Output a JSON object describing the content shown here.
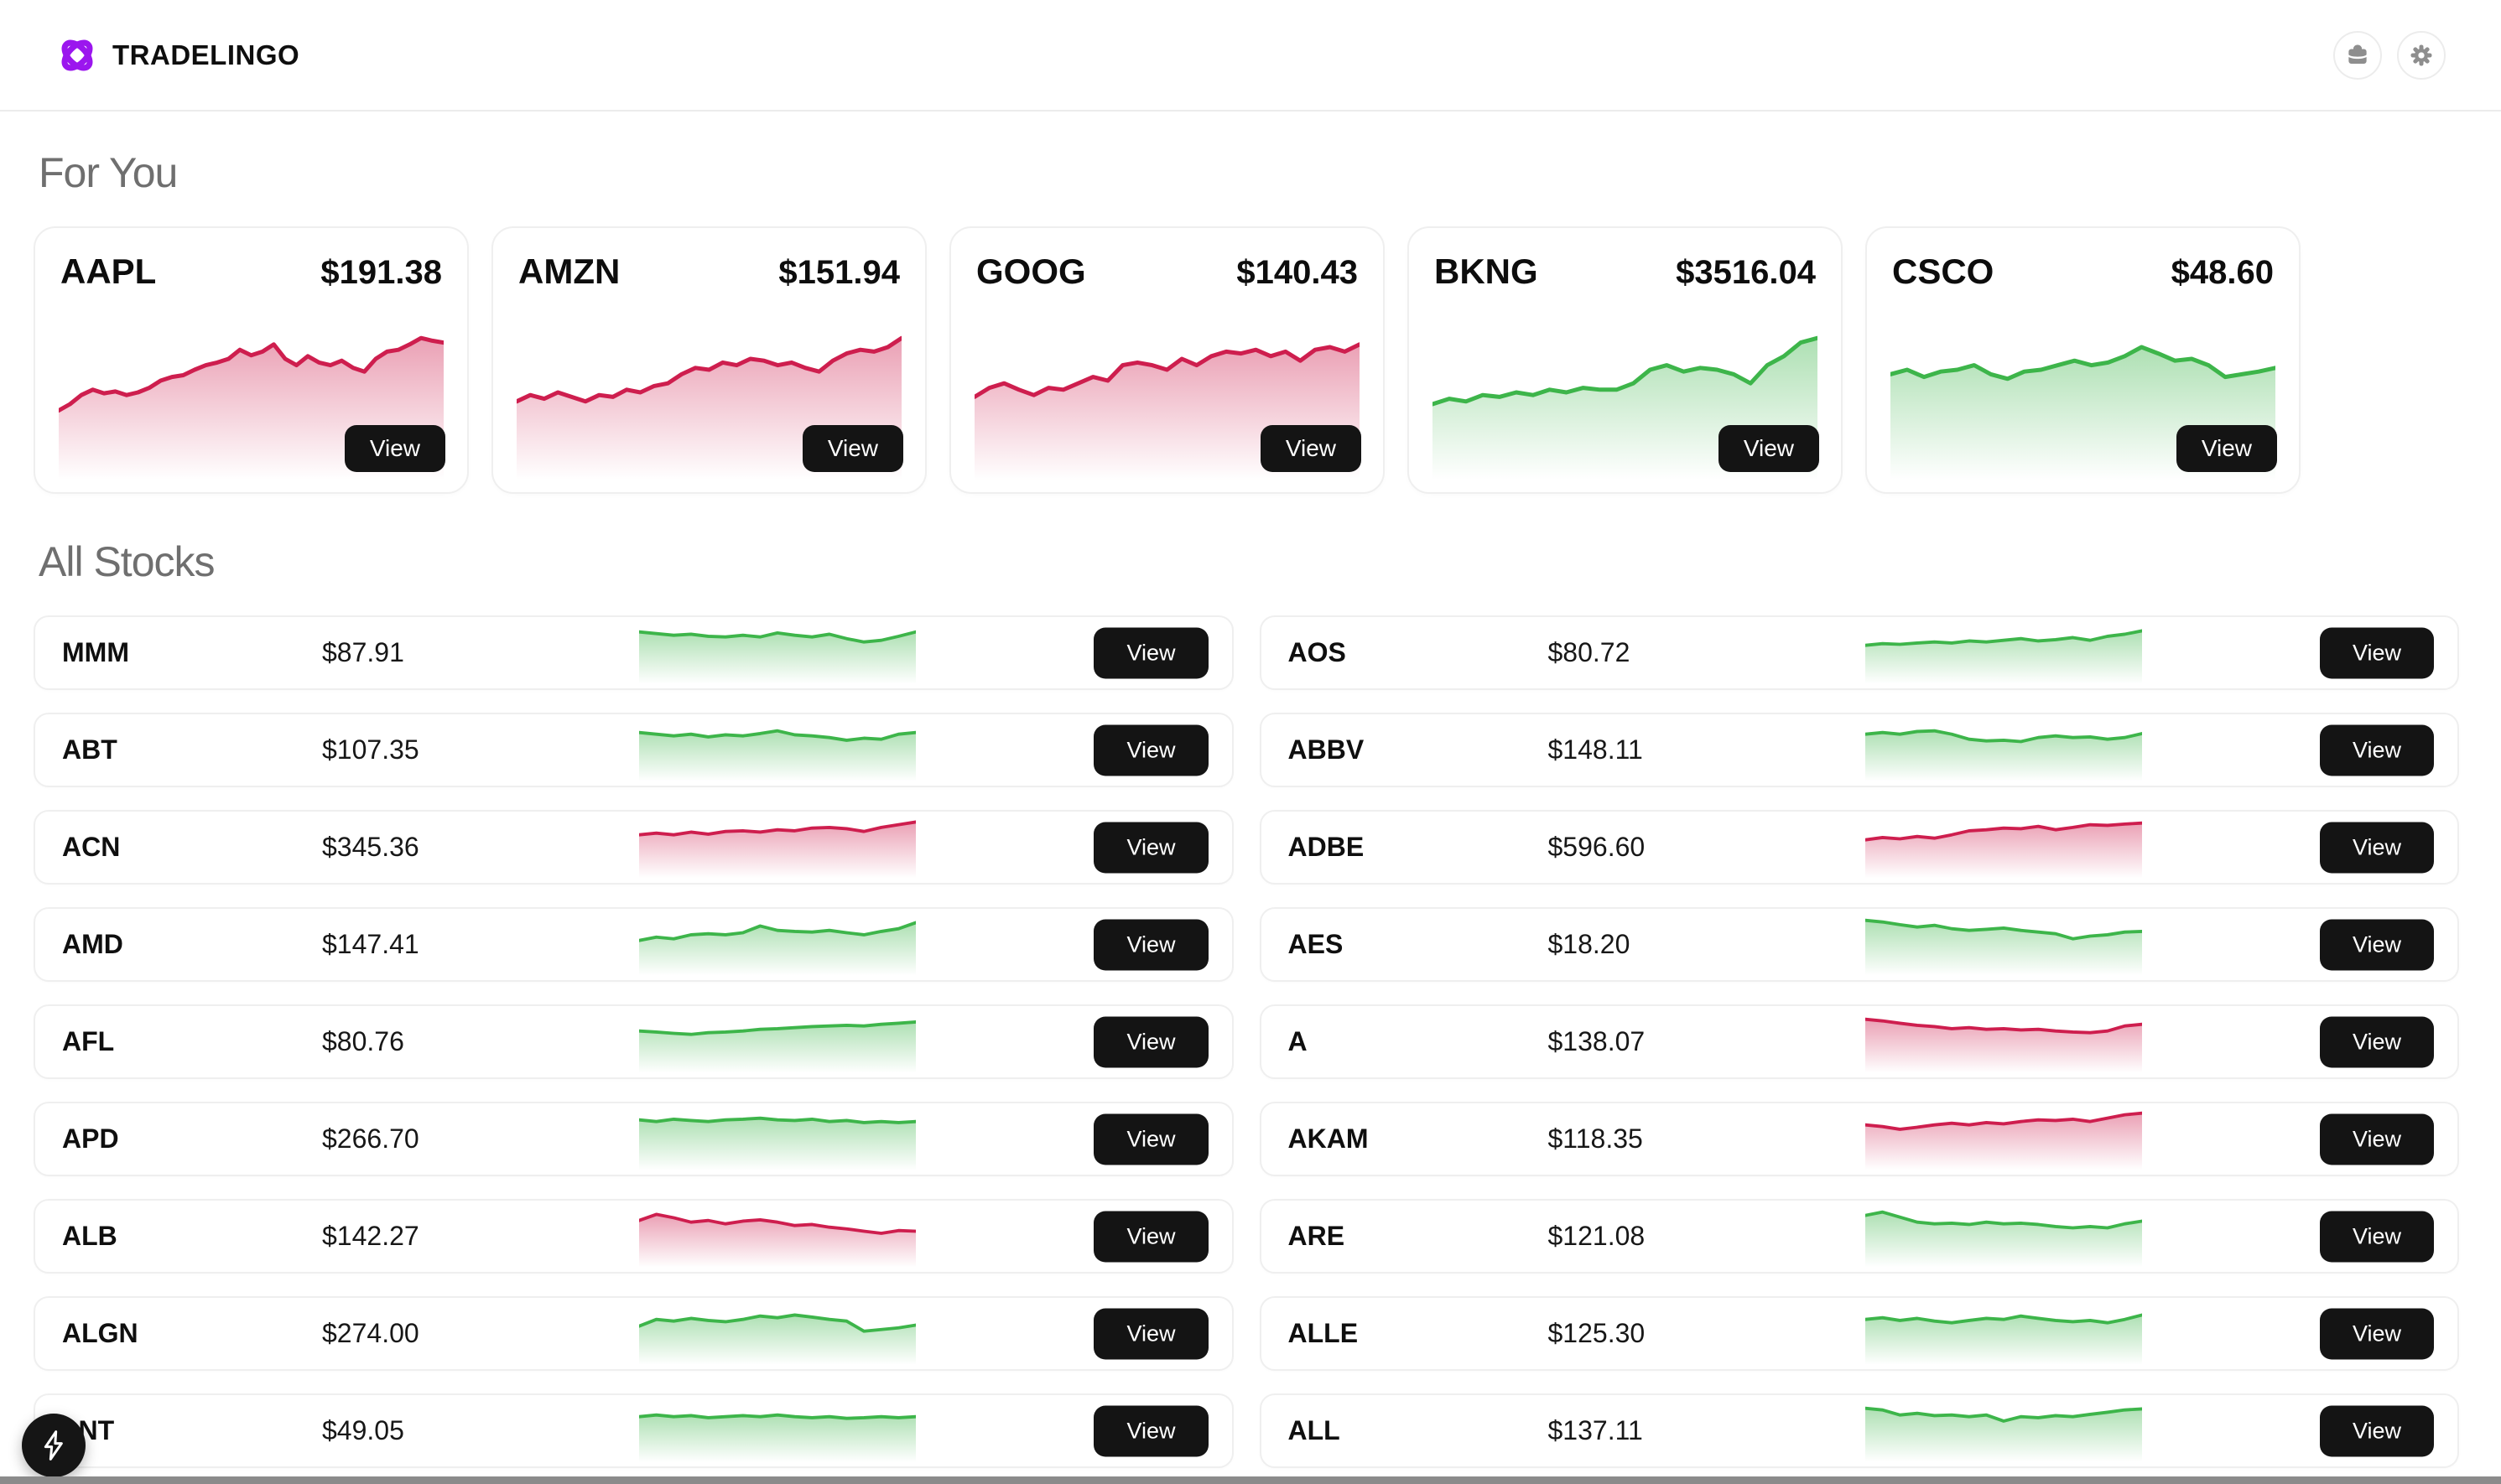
{
  "brand": {
    "name": "TRADELINGO"
  },
  "labels": {
    "view": "View"
  },
  "sections": {
    "for_you": "For You",
    "all_stocks": "All Stocks"
  },
  "colors": {
    "up_line": "#3db54a",
    "down_line": "#ce1e4e",
    "brand_purple": "#9b16ee",
    "button_bg": "#141414",
    "heading_gray": "#6f6f6f",
    "icon_gray": "#8e8e8e",
    "bottom_bar": "#8b8b8b"
  },
  "header_icons": [
    {
      "name": "portfolio",
      "icon": "briefcase-icon"
    },
    {
      "name": "settings",
      "icon": "gear-icon"
    }
  ],
  "featured": [
    {
      "ticker": "AAPL",
      "price": "$191.38",
      "trend": "down",
      "points": [
        0.05,
        0.12,
        0.22,
        0.28,
        0.24,
        0.26,
        0.22,
        0.25,
        0.3,
        0.38,
        0.42,
        0.44,
        0.5,
        0.55,
        0.58,
        0.62,
        0.72,
        0.66,
        0.7,
        0.78,
        0.62,
        0.55,
        0.65,
        0.58,
        0.55,
        0.6,
        0.52,
        0.48,
        0.62,
        0.7,
        0.72,
        0.78,
        0.85,
        0.82,
        0.8
      ]
    },
    {
      "ticker": "AMZN",
      "price": "$151.94",
      "trend": "down",
      "points": [
        0.15,
        0.22,
        0.18,
        0.25,
        0.2,
        0.15,
        0.22,
        0.2,
        0.28,
        0.25,
        0.32,
        0.35,
        0.45,
        0.52,
        0.5,
        0.58,
        0.55,
        0.62,
        0.6,
        0.55,
        0.58,
        0.52,
        0.48,
        0.6,
        0.68,
        0.72,
        0.7,
        0.75,
        0.85
      ]
    },
    {
      "ticker": "GOOG",
      "price": "$140.43",
      "trend": "down",
      "points": [
        0.2,
        0.3,
        0.35,
        0.28,
        0.22,
        0.3,
        0.28,
        0.35,
        0.42,
        0.38,
        0.55,
        0.58,
        0.55,
        0.5,
        0.62,
        0.55,
        0.65,
        0.7,
        0.68,
        0.72,
        0.65,
        0.7,
        0.6,
        0.72,
        0.75,
        0.7,
        0.78
      ]
    },
    {
      "ticker": "BKNG",
      "price": "$3516.04",
      "trend": "up",
      "points": [
        0.12,
        0.18,
        0.15,
        0.22,
        0.2,
        0.25,
        0.22,
        0.28,
        0.25,
        0.3,
        0.28,
        0.28,
        0.35,
        0.5,
        0.55,
        0.48,
        0.52,
        0.5,
        0.45,
        0.35,
        0.55,
        0.65,
        0.8,
        0.85
      ]
    },
    {
      "ticker": "CSCO",
      "price": "$48.60",
      "trend": "up",
      "points": [
        0.45,
        0.5,
        0.42,
        0.48,
        0.5,
        0.55,
        0.45,
        0.4,
        0.48,
        0.5,
        0.55,
        0.6,
        0.55,
        0.58,
        0.65,
        0.75,
        0.68,
        0.6,
        0.62,
        0.55,
        0.42,
        0.45,
        0.48,
        0.52
      ]
    }
  ],
  "stocks": [
    {
      "ticker": "MMM",
      "price": "$87.91",
      "trend": "up",
      "points": [
        0.75,
        0.7,
        0.65,
        0.68,
        0.62,
        0.6,
        0.65,
        0.6,
        0.72,
        0.65,
        0.6,
        0.68,
        0.55,
        0.45,
        0.5,
        0.62,
        0.75
      ]
    },
    {
      "ticker": "AOS",
      "price": "$80.72",
      "trend": "up",
      "points": [
        0.35,
        0.4,
        0.38,
        0.42,
        0.45,
        0.42,
        0.48,
        0.45,
        0.5,
        0.55,
        0.48,
        0.52,
        0.58,
        0.5,
        0.62,
        0.68,
        0.78
      ]
    },
    {
      "ticker": "ABT",
      "price": "$107.35",
      "trend": "up",
      "points": [
        0.65,
        0.6,
        0.55,
        0.6,
        0.52,
        0.58,
        0.55,
        0.62,
        0.7,
        0.58,
        0.55,
        0.5,
        0.42,
        0.48,
        0.45,
        0.6,
        0.65
      ]
    },
    {
      "ticker": "ABBV",
      "price": "$148.11",
      "trend": "up",
      "points": [
        0.6,
        0.65,
        0.6,
        0.68,
        0.7,
        0.6,
        0.45,
        0.4,
        0.42,
        0.38,
        0.5,
        0.55,
        0.5,
        0.52,
        0.45,
        0.5,
        0.62
      ]
    },
    {
      "ticker": "ACN",
      "price": "$345.36",
      "trend": "down",
      "points": [
        0.5,
        0.55,
        0.5,
        0.58,
        0.52,
        0.6,
        0.62,
        0.58,
        0.65,
        0.62,
        0.7,
        0.72,
        0.68,
        0.6,
        0.72,
        0.8,
        0.88
      ]
    },
    {
      "ticker": "ADBE",
      "price": "$596.60",
      "trend": "down",
      "points": [
        0.35,
        0.42,
        0.38,
        0.45,
        0.4,
        0.5,
        0.62,
        0.65,
        0.7,
        0.68,
        0.75,
        0.65,
        0.72,
        0.8,
        0.78,
        0.82,
        0.85
      ]
    },
    {
      "ticker": "AMD",
      "price": "$147.41",
      "trend": "up",
      "points": [
        0.25,
        0.35,
        0.3,
        0.42,
        0.45,
        0.42,
        0.48,
        0.68,
        0.55,
        0.52,
        0.5,
        0.55,
        0.48,
        0.42,
        0.52,
        0.6,
        0.78
      ]
    },
    {
      "ticker": "AES",
      "price": "$18.20",
      "trend": "up",
      "points": [
        0.85,
        0.8,
        0.72,
        0.65,
        0.7,
        0.6,
        0.55,
        0.58,
        0.62,
        0.55,
        0.5,
        0.45,
        0.3,
        0.38,
        0.42,
        0.5,
        0.52
      ]
    },
    {
      "ticker": "AFL",
      "price": "$80.76",
      "trend": "up",
      "points": [
        0.45,
        0.42,
        0.38,
        0.35,
        0.4,
        0.42,
        0.45,
        0.5,
        0.52,
        0.55,
        0.58,
        0.6,
        0.62,
        0.6,
        0.65,
        0.68,
        0.72
      ]
    },
    {
      "ticker": "A",
      "price": "$138.07",
      "trend": "down",
      "points": [
        0.8,
        0.75,
        0.68,
        0.62,
        0.58,
        0.52,
        0.55,
        0.5,
        0.52,
        0.48,
        0.5,
        0.45,
        0.42,
        0.4,
        0.45,
        0.6,
        0.65
      ]
    },
    {
      "ticker": "APD",
      "price": "$266.70",
      "trend": "up",
      "points": [
        0.7,
        0.65,
        0.72,
        0.68,
        0.65,
        0.7,
        0.72,
        0.75,
        0.7,
        0.68,
        0.72,
        0.65,
        0.68,
        0.62,
        0.65,
        0.62,
        0.65
      ]
    },
    {
      "ticker": "AKAM",
      "price": "$118.35",
      "trend": "down",
      "points": [
        0.55,
        0.5,
        0.42,
        0.48,
        0.55,
        0.6,
        0.55,
        0.62,
        0.58,
        0.65,
        0.7,
        0.68,
        0.72,
        0.65,
        0.75,
        0.85,
        0.9
      ]
    },
    {
      "ticker": "ALB",
      "price": "$142.27",
      "trend": "down",
      "points": [
        0.6,
        0.78,
        0.68,
        0.55,
        0.6,
        0.5,
        0.58,
        0.62,
        0.55,
        0.45,
        0.48,
        0.4,
        0.35,
        0.28,
        0.22,
        0.3,
        0.28
      ]
    },
    {
      "ticker": "ARE",
      "price": "$121.08",
      "trend": "up",
      "points": [
        0.75,
        0.85,
        0.7,
        0.55,
        0.5,
        0.52,
        0.48,
        0.55,
        0.5,
        0.52,
        0.48,
        0.42,
        0.38,
        0.42,
        0.38,
        0.5,
        0.58
      ]
    },
    {
      "ticker": "ALGN",
      "price": "$274.00",
      "trend": "up",
      "points": [
        0.35,
        0.55,
        0.5,
        0.58,
        0.52,
        0.48,
        0.55,
        0.65,
        0.6,
        0.68,
        0.62,
        0.55,
        0.5,
        0.2,
        0.25,
        0.3,
        0.38
      ]
    },
    {
      "ticker": "ALLE",
      "price": "$125.30",
      "trend": "up",
      "points": [
        0.55,
        0.6,
        0.52,
        0.58,
        0.5,
        0.45,
        0.52,
        0.58,
        0.55,
        0.65,
        0.58,
        0.52,
        0.48,
        0.52,
        0.45,
        0.55,
        0.68
      ]
    },
    {
      "ticker": "LNT",
      "price": "$49.05",
      "trend": "up",
      "points": [
        0.55,
        0.6,
        0.55,
        0.58,
        0.52,
        0.55,
        0.58,
        0.55,
        0.6,
        0.55,
        0.52,
        0.55,
        0.5,
        0.52,
        0.55,
        0.52,
        0.55
      ]
    },
    {
      "ticker": "ALL",
      "price": "$137.11",
      "trend": "up",
      "points": [
        0.8,
        0.75,
        0.6,
        0.65,
        0.58,
        0.6,
        0.55,
        0.6,
        0.42,
        0.55,
        0.52,
        0.58,
        0.55,
        0.62,
        0.68,
        0.75,
        0.78
      ]
    }
  ],
  "fab": {
    "icon": "lightning"
  }
}
